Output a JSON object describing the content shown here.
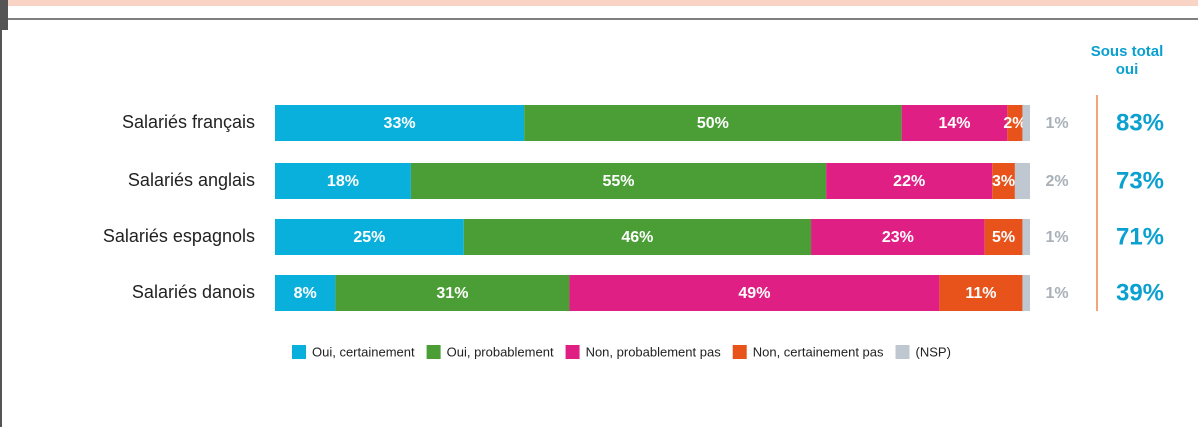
{
  "chart_data": {
    "type": "bar",
    "orientation": "horizontal",
    "stacked": true,
    "categories": [
      "Salariés français",
      "Salariés anglais",
      "Salariés espagnols",
      "Salariés danois"
    ],
    "xlim": [
      0,
      100
    ],
    "series": [
      {
        "name": "Oui, certainement",
        "color": "#0ab0dc",
        "values": [
          33,
          18,
          25,
          8
        ],
        "value_labels": [
          "33%",
          "18%",
          "25%",
          "8%"
        ]
      },
      {
        "name": "Oui, probablement",
        "color": "#4a9e35",
        "values": [
          50,
          55,
          46,
          31
        ],
        "value_labels": [
          "50%",
          "55%",
          "46%",
          "31%"
        ]
      },
      {
        "name": "Non, probablement pas",
        "color": "#e01f84",
        "values": [
          14,
          22,
          23,
          49
        ],
        "value_labels": [
          "14%",
          "22%",
          "23%",
          "49%"
        ]
      },
      {
        "name": "Non, certainement pas",
        "color": "#e8531c",
        "values": [
          2,
          3,
          5,
          11
        ],
        "value_labels": [
          "2%",
          "3%",
          "5%",
          "11%"
        ]
      },
      {
        "name": "(NSP)",
        "color": "#bfc8d0",
        "values": [
          1,
          2,
          1,
          1
        ],
        "value_labels": [
          "1%",
          "2%",
          "1%",
          "1%"
        ]
      }
    ],
    "subtotal": {
      "title_lines": [
        "Sous total",
        "oui"
      ],
      "values": [
        83,
        73,
        71,
        39
      ],
      "value_labels": [
        "83%",
        "73%",
        "71%",
        "39%"
      ]
    }
  }
}
